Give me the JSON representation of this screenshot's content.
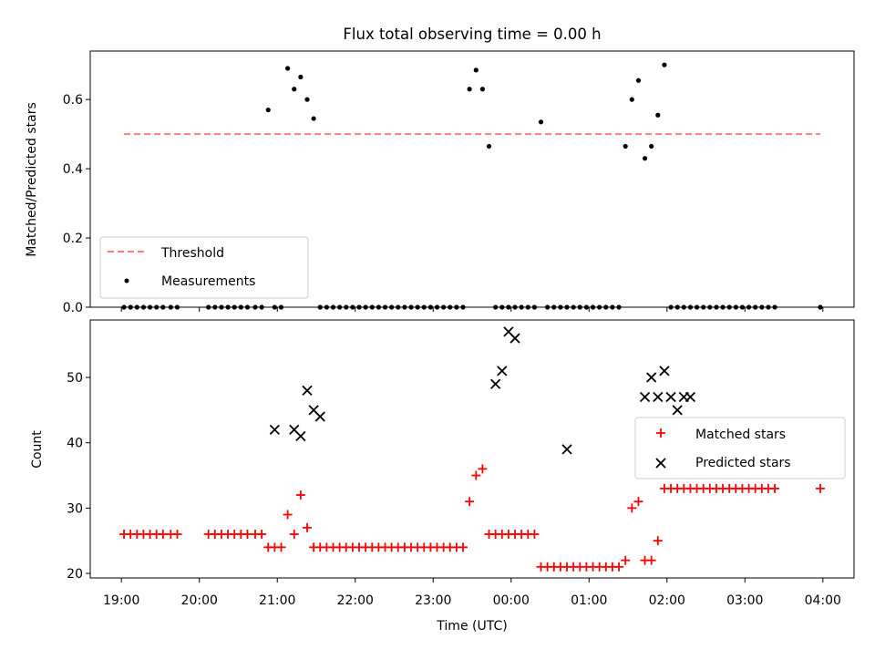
{
  "chart_data": [
    {
      "type": "scatter",
      "title": "Flux total observing time = 0.00 h",
      "xlabel": "",
      "ylabel": "Matched/Predicted stars",
      "xlim": [
        "18:36",
        "04:24"
      ],
      "ylim": [
        0,
        0.74
      ],
      "yticks": [
        0.0,
        0.2,
        0.4,
        0.6
      ],
      "ytick_labels": [
        "0.0",
        "0.2",
        "0.4",
        "0.6"
      ],
      "legend_position": "lower left",
      "threshold": {
        "name": "Threshold",
        "value": 0.5,
        "x": [
          "19:02",
          "03:58"
        ],
        "color": "#ff7f7f",
        "dash": "dashed"
      },
      "series": [
        {
          "name": "Measurements",
          "color": "#000000",
          "marker": "dot",
          "x": [
            "19:02",
            "19:07",
            "19:12",
            "19:17",
            "19:22",
            "19:27",
            "19:32",
            "19:38",
            "19:43",
            "20:07",
            "20:12",
            "20:17",
            "20:22",
            "20:27",
            "20:32",
            "20:37",
            "20:43",
            "20:48",
            "20:53",
            "20:58",
            "21:03",
            "21:08",
            "21:13",
            "21:18",
            "21:23",
            "21:28",
            "21:33",
            "21:38",
            "21:43",
            "21:48",
            "21:53",
            "21:58",
            "22:03",
            "22:08",
            "22:13",
            "22:18",
            "22:23",
            "22:28",
            "22:33",
            "22:38",
            "22:43",
            "22:48",
            "22:53",
            "22:58",
            "23:03",
            "23:08",
            "23:13",
            "23:18",
            "23:23",
            "23:28",
            "23:33",
            "23:38",
            "23:43",
            "23:48",
            "23:53",
            "23:58",
            "00:03",
            "00:08",
            "00:13",
            "00:18",
            "00:23",
            "00:28",
            "00:33",
            "00:38",
            "00:43",
            "00:48",
            "00:53",
            "00:58",
            "01:03",
            "01:08",
            "01:13",
            "01:18",
            "01:23",
            "01:28",
            "01:33",
            "01:38",
            "01:43",
            "01:48",
            "01:53",
            "01:58",
            "02:03",
            "02:08",
            "02:13",
            "02:18",
            "02:23",
            "02:28",
            "02:33",
            "02:38",
            "02:43",
            "02:48",
            "02:53",
            "02:58",
            "03:03",
            "03:08",
            "03:13",
            "03:18",
            "03:23",
            "03:58"
          ],
          "y": [
            0,
            0,
            0,
            0,
            0,
            0,
            0,
            0,
            0,
            0,
            0,
            0,
            0,
            0,
            0,
            0,
            0,
            0,
            0.57,
            0,
            0,
            0.69,
            0.63,
            0.665,
            0.6,
            0.545,
            0,
            0,
            0,
            0,
            0,
            0,
            0,
            0,
            0,
            0,
            0,
            0,
            0,
            0,
            0,
            0,
            0,
            0,
            0,
            0,
            0,
            0,
            0,
            0.63,
            0.685,
            0.63,
            0.465,
            0,
            0,
            0,
            0,
            0,
            0,
            0,
            0.535,
            0,
            0,
            0,
            0,
            0,
            0,
            0,
            0,
            0,
            0,
            0,
            0,
            0.465,
            0.6,
            0.655,
            0.43,
            0.465,
            0.555,
            0.7,
            0,
            0,
            0,
            0,
            0,
            0,
            0,
            0,
            0,
            0,
            0,
            0,
            0,
            0,
            0,
            0,
            0,
            0
          ]
        }
      ]
    },
    {
      "type": "scatter",
      "title": "",
      "xlabel": "Time (UTC)",
      "ylabel": "Count",
      "xlim": [
        "18:36",
        "04:24"
      ],
      "ylim": [
        19.3,
        58.8
      ],
      "yticks": [
        20,
        30,
        40,
        50
      ],
      "ytick_labels": [
        "20",
        "30",
        "40",
        "50"
      ],
      "xticks": [
        "19:00",
        "20:00",
        "21:00",
        "22:00",
        "23:00",
        "00:00",
        "01:00",
        "02:00",
        "03:00",
        "04:00"
      ],
      "legend_position": "center right",
      "series": [
        {
          "name": "Matched stars",
          "color": "#ff0000",
          "marker": "plus",
          "x": [
            "19:02",
            "19:07",
            "19:12",
            "19:17",
            "19:22",
            "19:27",
            "19:32",
            "19:38",
            "19:43",
            "20:07",
            "20:12",
            "20:17",
            "20:22",
            "20:27",
            "20:32",
            "20:37",
            "20:43",
            "20:48",
            "20:53",
            "20:58",
            "21:03",
            "21:08",
            "21:13",
            "21:18",
            "21:23",
            "21:28",
            "21:33",
            "21:38",
            "21:43",
            "21:48",
            "21:53",
            "21:58",
            "22:03",
            "22:08",
            "22:13",
            "22:18",
            "22:23",
            "22:28",
            "22:33",
            "22:38",
            "22:43",
            "22:48",
            "22:53",
            "22:58",
            "23:03",
            "23:08",
            "23:13",
            "23:18",
            "23:23",
            "23:28",
            "23:33",
            "23:38",
            "23:43",
            "23:48",
            "23:53",
            "23:58",
            "00:03",
            "00:08",
            "00:13",
            "00:18",
            "00:23",
            "00:28",
            "00:33",
            "00:38",
            "00:43",
            "00:48",
            "00:53",
            "00:58",
            "01:03",
            "01:08",
            "01:13",
            "01:18",
            "01:23",
            "01:28",
            "01:33",
            "01:38",
            "01:43",
            "01:48",
            "01:53",
            "01:58",
            "02:03",
            "02:08",
            "02:13",
            "02:18",
            "02:23",
            "02:28",
            "02:33",
            "02:38",
            "02:43",
            "02:48",
            "02:53",
            "02:58",
            "03:03",
            "03:08",
            "03:13",
            "03:18",
            "03:23",
            "03:58"
          ],
          "y": [
            26,
            26,
            26,
            26,
            26,
            26,
            26,
            26,
            26,
            26,
            26,
            26,
            26,
            26,
            26,
            26,
            26,
            26,
            24,
            24,
            24,
            29,
            26,
            32,
            27,
            24,
            24,
            24,
            24,
            24,
            24,
            24,
            24,
            24,
            24,
            24,
            24,
            24,
            24,
            24,
            24,
            24,
            24,
            24,
            24,
            24,
            24,
            24,
            24,
            31,
            35,
            36,
            26,
            26,
            26,
            26,
            26,
            26,
            26,
            26,
            21,
            21,
            21,
            21,
            21,
            21,
            21,
            21,
            21,
            21,
            21,
            21,
            21,
            22,
            30,
            31,
            22,
            22,
            25,
            33,
            33,
            33,
            33,
            33,
            33,
            33,
            33,
            33,
            33,
            33,
            33,
            33,
            33,
            33,
            33,
            33,
            33,
            33
          ]
        },
        {
          "name": "Predicted stars",
          "color": "#000000",
          "marker": "x",
          "x": [
            "20:58",
            "21:13",
            "21:18",
            "21:23",
            "21:28",
            "21:33",
            "23:48",
            "23:53",
            "23:58",
            "00:03",
            "00:43",
            "01:43",
            "01:48",
            "01:53",
            "01:58",
            "02:03",
            "02:08",
            "02:13",
            "02:18"
          ],
          "y": [
            42,
            42,
            41,
            48,
            45,
            44,
            49,
            51,
            57,
            56,
            39,
            47,
            50,
            47,
            51,
            47,
            45,
            47,
            47
          ]
        }
      ]
    }
  ]
}
